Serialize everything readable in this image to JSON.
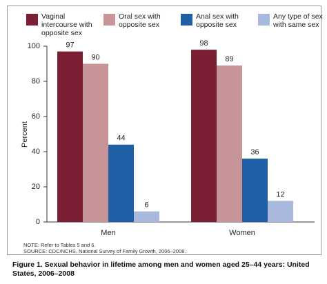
{
  "chart_data": {
    "type": "bar",
    "title": "Figure 1. Sexual behavior in lifetime among men and women aged 25–44 years: United States, 2006–2008",
    "notes": [
      "NOTE: Refer to Tables 5 and 6.",
      "SOURCE: CDC/NCHS, National Survey of Family Growth, 2006–2008."
    ],
    "y_label": "Percent",
    "categories": [
      "Men",
      "Women"
    ],
    "series": [
      {
        "name": "Vaginal intercourse with opposite sex",
        "color": "#7b1f35",
        "values": [
          97,
          98
        ]
      },
      {
        "name": "Oral sex with opposite sex",
        "color": "#c79597",
        "values": [
          90,
          89
        ]
      },
      {
        "name": "Anal sex with opposite sex",
        "color": "#1f5fa6",
        "values": [
          44,
          36
        ]
      },
      {
        "name": "Any type of sex with same sex",
        "color": "#a9b9de",
        "values": [
          6,
          12
        ]
      }
    ],
    "ylim": [
      0,
      100
    ],
    "yticks": [
      0,
      20,
      40,
      60,
      80,
      100
    ],
    "grid": false
  }
}
